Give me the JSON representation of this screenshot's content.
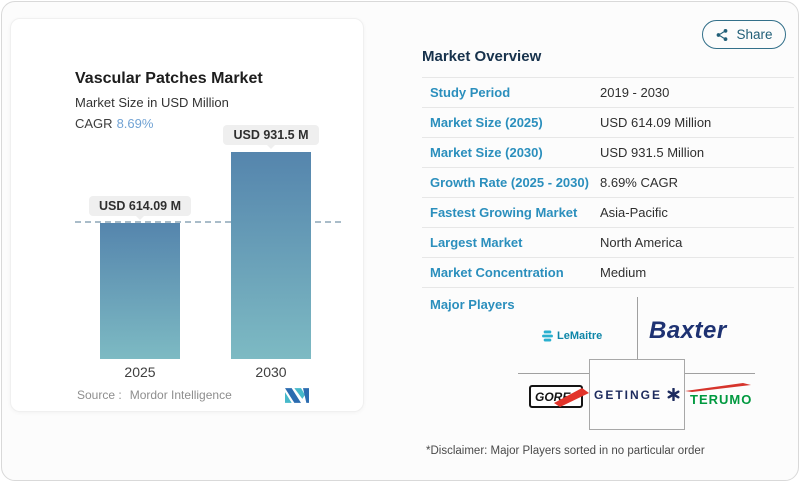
{
  "page": {
    "share_label": "Share"
  },
  "icons": {
    "share": "share-nodes",
    "getinge_symbol": "six-arm-star",
    "lemaitre_mark": "striped-sphere",
    "gore_mark": "red-arrow-swoosh",
    "terumo_mark": "red-swoosh",
    "mordor_logo": "mordor-intelligence-m-mark"
  },
  "chart_card": {
    "title": "Vascular Patches Market",
    "subtitle": "Market Size in USD Million",
    "cagr_label": "CAGR",
    "cagr_value": "8.69%",
    "source_label": "Source :",
    "source_value": "Mordor Intelligence"
  },
  "chart_data": {
    "type": "bar",
    "title": "Vascular Patches Market",
    "ylabel": "Market Size in USD Million",
    "xlabel": "",
    "categories": [
      "2025",
      "2030"
    ],
    "values": [
      614.09,
      931.5
    ],
    "bar_labels": [
      "USD 614.09 M",
      "USD 931.5 M"
    ],
    "units": "USD Million",
    "cagr_percent": 8.69,
    "reference_line_value": 614.09,
    "legend": false,
    "gridlines": false,
    "bar_gradient_top": "#5585ad",
    "bar_gradient_bottom": "#7dbac3"
  },
  "overview": {
    "title": "Market Overview",
    "rows": [
      {
        "label": "Study Period",
        "value": "2019 - 2030"
      },
      {
        "label": "Market Size (2025)",
        "value": "USD 614.09 Million"
      },
      {
        "label": "Market Size (2030)",
        "value": "USD 931.5 Million"
      },
      {
        "label": "Growth Rate (2025 - 2030)",
        "value": "8.69% CAGR"
      },
      {
        "label": "Fastest Growing Market",
        "value": "Asia-Pacific"
      },
      {
        "label": "Largest Market",
        "value": "North America"
      },
      {
        "label": "Market Concentration",
        "value": "Medium"
      }
    ],
    "major_players_label": "Major Players",
    "players": [
      "LeMaitre",
      "Baxter",
      "GORE",
      "GETINGE",
      "TERUMO"
    ],
    "disclaimer": "*Disclaimer: Major Players sorted in no particular order"
  },
  "colors": {
    "accent_label_blue": "#2b8fbd",
    "heading_navy": "#17324c",
    "cagr_value_blue": "#72a3d4",
    "bar_gradient_top": "#5585ad",
    "bar_gradient_bottom": "#7dbac3",
    "share_teal": "#215f78",
    "baxter_navy": "#1e3272",
    "getinge_navy": "#1d2b5e",
    "terumo_green": "#00993f",
    "gore_red": "#e2342a",
    "lemaitre_teal": "#0e86a8",
    "mordor_blue": "#2b6cb0",
    "mordor_teal": "#47b9ca"
  }
}
